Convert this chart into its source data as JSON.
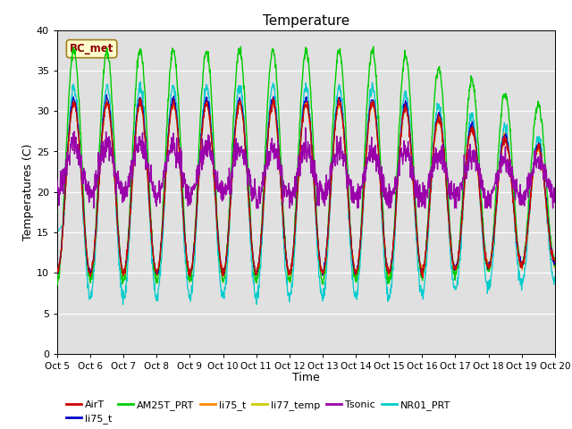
{
  "title": "Temperature",
  "xlabel": "Time",
  "ylabel": "Temperatures (C)",
  "ylim": [
    0,
    40
  ],
  "annotation": "BC_met",
  "bg_color": "#e0e0e0",
  "fig_color": "#ffffff",
  "legend_labels": [
    "AirT",
    "li75_t",
    "AM25T_PRT",
    "li75_t",
    "li77_temp",
    "Tsonic",
    "NR01_PRT"
  ],
  "legend_colors": [
    "#cc0000",
    "#0000cc",
    "#00cc00",
    "#ff8800",
    "#cccc00",
    "#9900aa",
    "#00cccc"
  ],
  "xtick_labels": [
    "Oct 5",
    "Oct 6",
    "Oct 7",
    "Oct 8",
    "Oct 9",
    "Oct 10",
    "Oct 11",
    "Oct 12",
    "Oct 13",
    "Oct 14",
    "Oct 15",
    "Oct 16",
    "Oct 17",
    "Oct 18",
    "Oct 19",
    "Oct 20"
  ],
  "num_points": 1500
}
